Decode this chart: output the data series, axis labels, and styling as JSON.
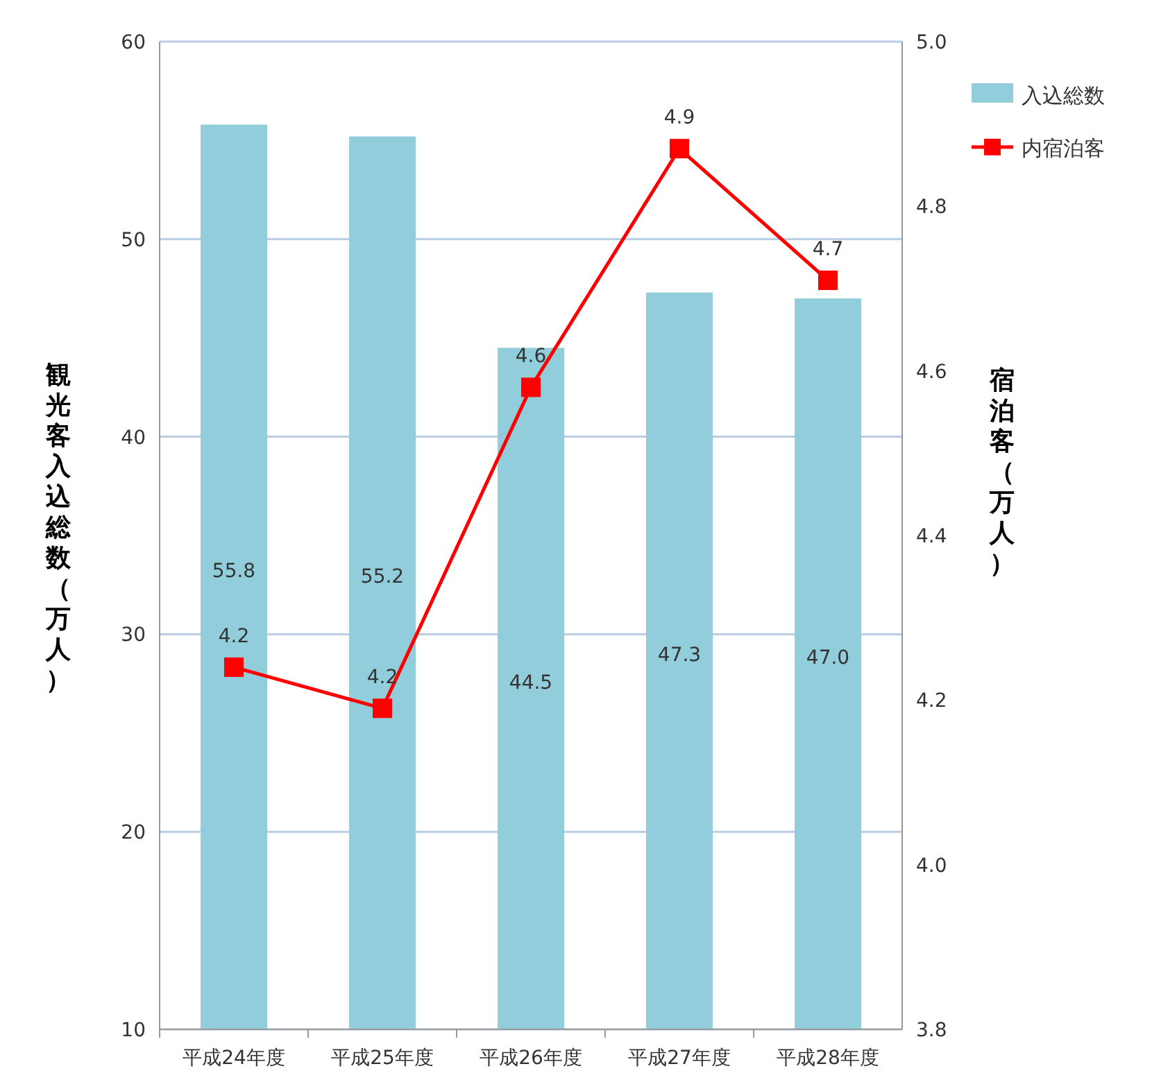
{
  "chart_data": {
    "type": "bar",
    "categories": [
      "平成24年度",
      "平成25年度",
      "平成26年度",
      "平成27年度",
      "平成28年度"
    ],
    "series": [
      {
        "name": "入込総数",
        "color": "#92cddc",
        "values": [
          55.8,
          55.2,
          44.5,
          47.3,
          47.0
        ],
        "value_labels": [
          "55.8",
          "55.2",
          "44.5",
          "47.3",
          "47.0"
        ]
      },
      {
        "name": "内宿泊客",
        "type": "line",
        "axis": "y2",
        "color": "#ff0000",
        "marker": "square",
        "line_style": "solid",
        "values": [
          4.24,
          4.19,
          4.58,
          4.87,
          4.71
        ],
        "value_labels": [
          "4.2",
          "4.2",
          "4.6",
          "4.9",
          "4.7"
        ]
      }
    ],
    "ylabel": "観光客入込総数（万人）",
    "y2label": "宿泊客（万人）",
    "ylim": [
      10,
      60
    ],
    "yticks": [
      10,
      20,
      30,
      40,
      50,
      60
    ],
    "y2lim": [
      3.8,
      5.0
    ],
    "y2ticks": [
      3.8,
      {
        "value": 4,
        "label": "4.0"
      },
      4.2,
      4.4,
      4.6,
      4.8,
      {
        "value": 5,
        "label": "5.0"
      }
    ],
    "grid": "y",
    "legend": "top right"
  }
}
